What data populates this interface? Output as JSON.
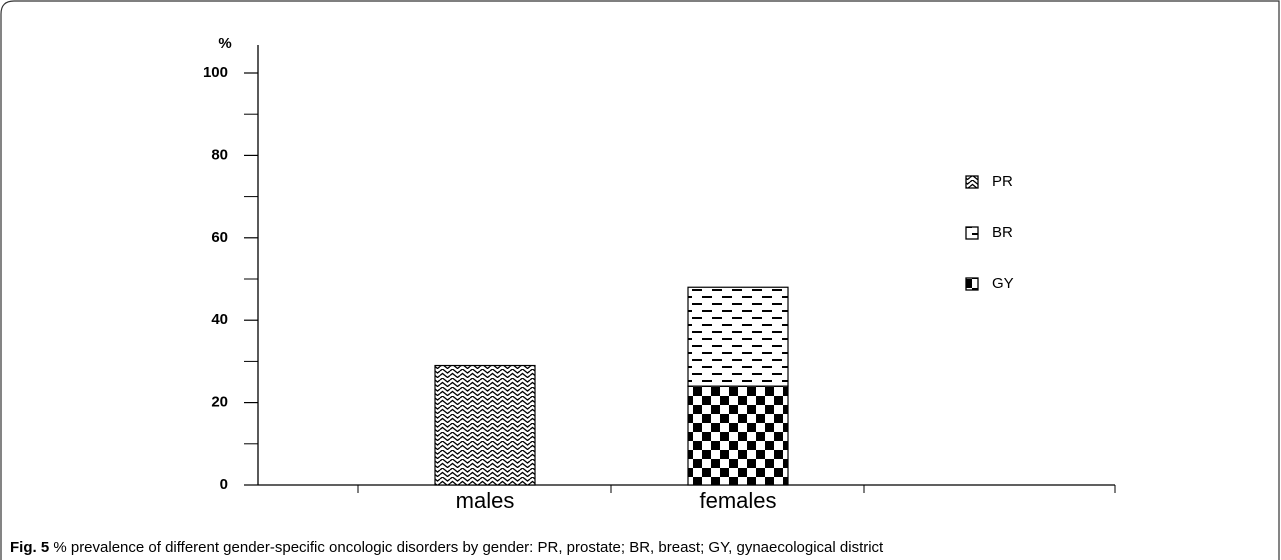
{
  "chart_data": {
    "type": "bar",
    "stacked": true,
    "y_label": "%",
    "categories": [
      "males",
      "females"
    ],
    "series": [
      {
        "name": "PR",
        "color": "#000000",
        "values": [
          29,
          null
        ]
      },
      {
        "name": "BR",
        "color": "#000000",
        "values": [
          null,
          24
        ]
      },
      {
        "name": "GY",
        "color": "#000000",
        "values": [
          null,
          24
        ]
      }
    ],
    "ylim": [
      0,
      100
    ],
    "yticks": [
      0,
      20,
      40,
      60,
      80,
      100
    ],
    "caption_label": "Fig. 5",
    "caption": "% prevalence of different gender-specific oncologic disorders by gender: PR, prostate; BR, breast; GY, gynaecological district"
  }
}
